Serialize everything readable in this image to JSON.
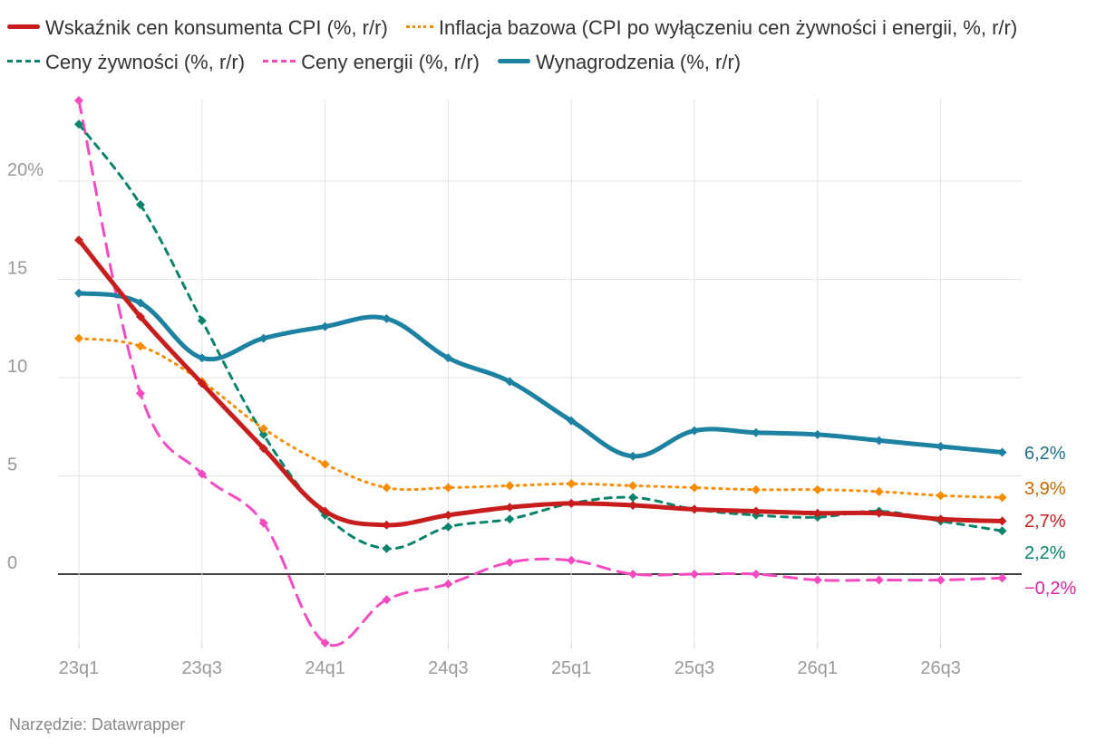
{
  "footer": "Narzędzie: Datawrapper",
  "chart_data": {
    "type": "line",
    "title": "",
    "xlabel": "",
    "ylabel": "",
    "categories": [
      "23q1",
      "23q2",
      "23q3",
      "23q4",
      "24q1",
      "24q2",
      "24q3",
      "24q4",
      "25q1",
      "25q2",
      "25q3",
      "25q4",
      "26q1",
      "26q2",
      "26q3",
      "26q4"
    ],
    "x_tick_labels": [
      "23q1",
      "23q3",
      "24q1",
      "24q3",
      "25q1",
      "25q3",
      "26q1",
      "26q3"
    ],
    "y_ticks": [
      0,
      5,
      10,
      15,
      20
    ],
    "y_tick_labels": [
      "0",
      "5",
      "10",
      "15",
      "20%"
    ],
    "ylim": [
      -3.8,
      24.5
    ],
    "grid": true,
    "legend_position": "top",
    "series": [
      {
        "name": "Wskaźnik cen konsumenta CPI (%, r/r)",
        "color": "#c71e1d",
        "style": "solid",
        "width": 5,
        "values": [
          17.0,
          13.1,
          9.7,
          6.4,
          3.2,
          2.5,
          3.0,
          3.4,
          3.6,
          3.5,
          3.3,
          3.2,
          3.1,
          3.1,
          2.8,
          2.7
        ],
        "end_label": "2,7%",
        "end_label_color": "#c71e1d"
      },
      {
        "name": "Inflacja bazowa (CPI po wyłączeniu cen żywności i energii, %, r/r)",
        "color": "#fa8c00",
        "style": "dotted",
        "width": 3,
        "values": [
          12.0,
          11.6,
          9.8,
          7.4,
          5.6,
          4.4,
          4.4,
          4.5,
          4.6,
          4.5,
          4.4,
          4.3,
          4.3,
          4.2,
          4.0,
          3.9
        ],
        "end_label": "3,9%",
        "end_label_color": "#c46a00"
      },
      {
        "name": "Ceny żywności (%, r/r)",
        "color": "#09846c",
        "style": "dashed",
        "width": 3,
        "values": [
          22.9,
          18.8,
          12.9,
          7.1,
          3.0,
          1.3,
          2.4,
          2.8,
          3.6,
          3.9,
          3.3,
          3.0,
          2.9,
          3.2,
          2.7,
          2.2
        ],
        "end_label": "2,2%",
        "end_label_color": "#09846c"
      },
      {
        "name": "Ceny energii (%, r/r)",
        "color": "#f64ac0",
        "style": "longdash",
        "width": 3,
        "values": [
          24.1,
          9.2,
          5.1,
          2.6,
          -3.5,
          -1.3,
          -0.5,
          0.6,
          0.7,
          0.0,
          0.0,
          0.0,
          -0.3,
          -0.3,
          -0.3,
          -0.2
        ],
        "end_label": "−0,2%",
        "end_label_color": "#d6249f"
      },
      {
        "name": "Wynagrodzenia (%, r/r)",
        "color": "#1d81a2",
        "style": "solid",
        "width": 5,
        "values": [
          14.3,
          13.8,
          11.0,
          12.0,
          12.6,
          13.0,
          11.0,
          9.8,
          7.8,
          6.0,
          7.3,
          7.2,
          7.1,
          6.8,
          6.5,
          6.2
        ],
        "end_label": "6,2%",
        "end_label_color": "#1d6f8c"
      }
    ]
  }
}
